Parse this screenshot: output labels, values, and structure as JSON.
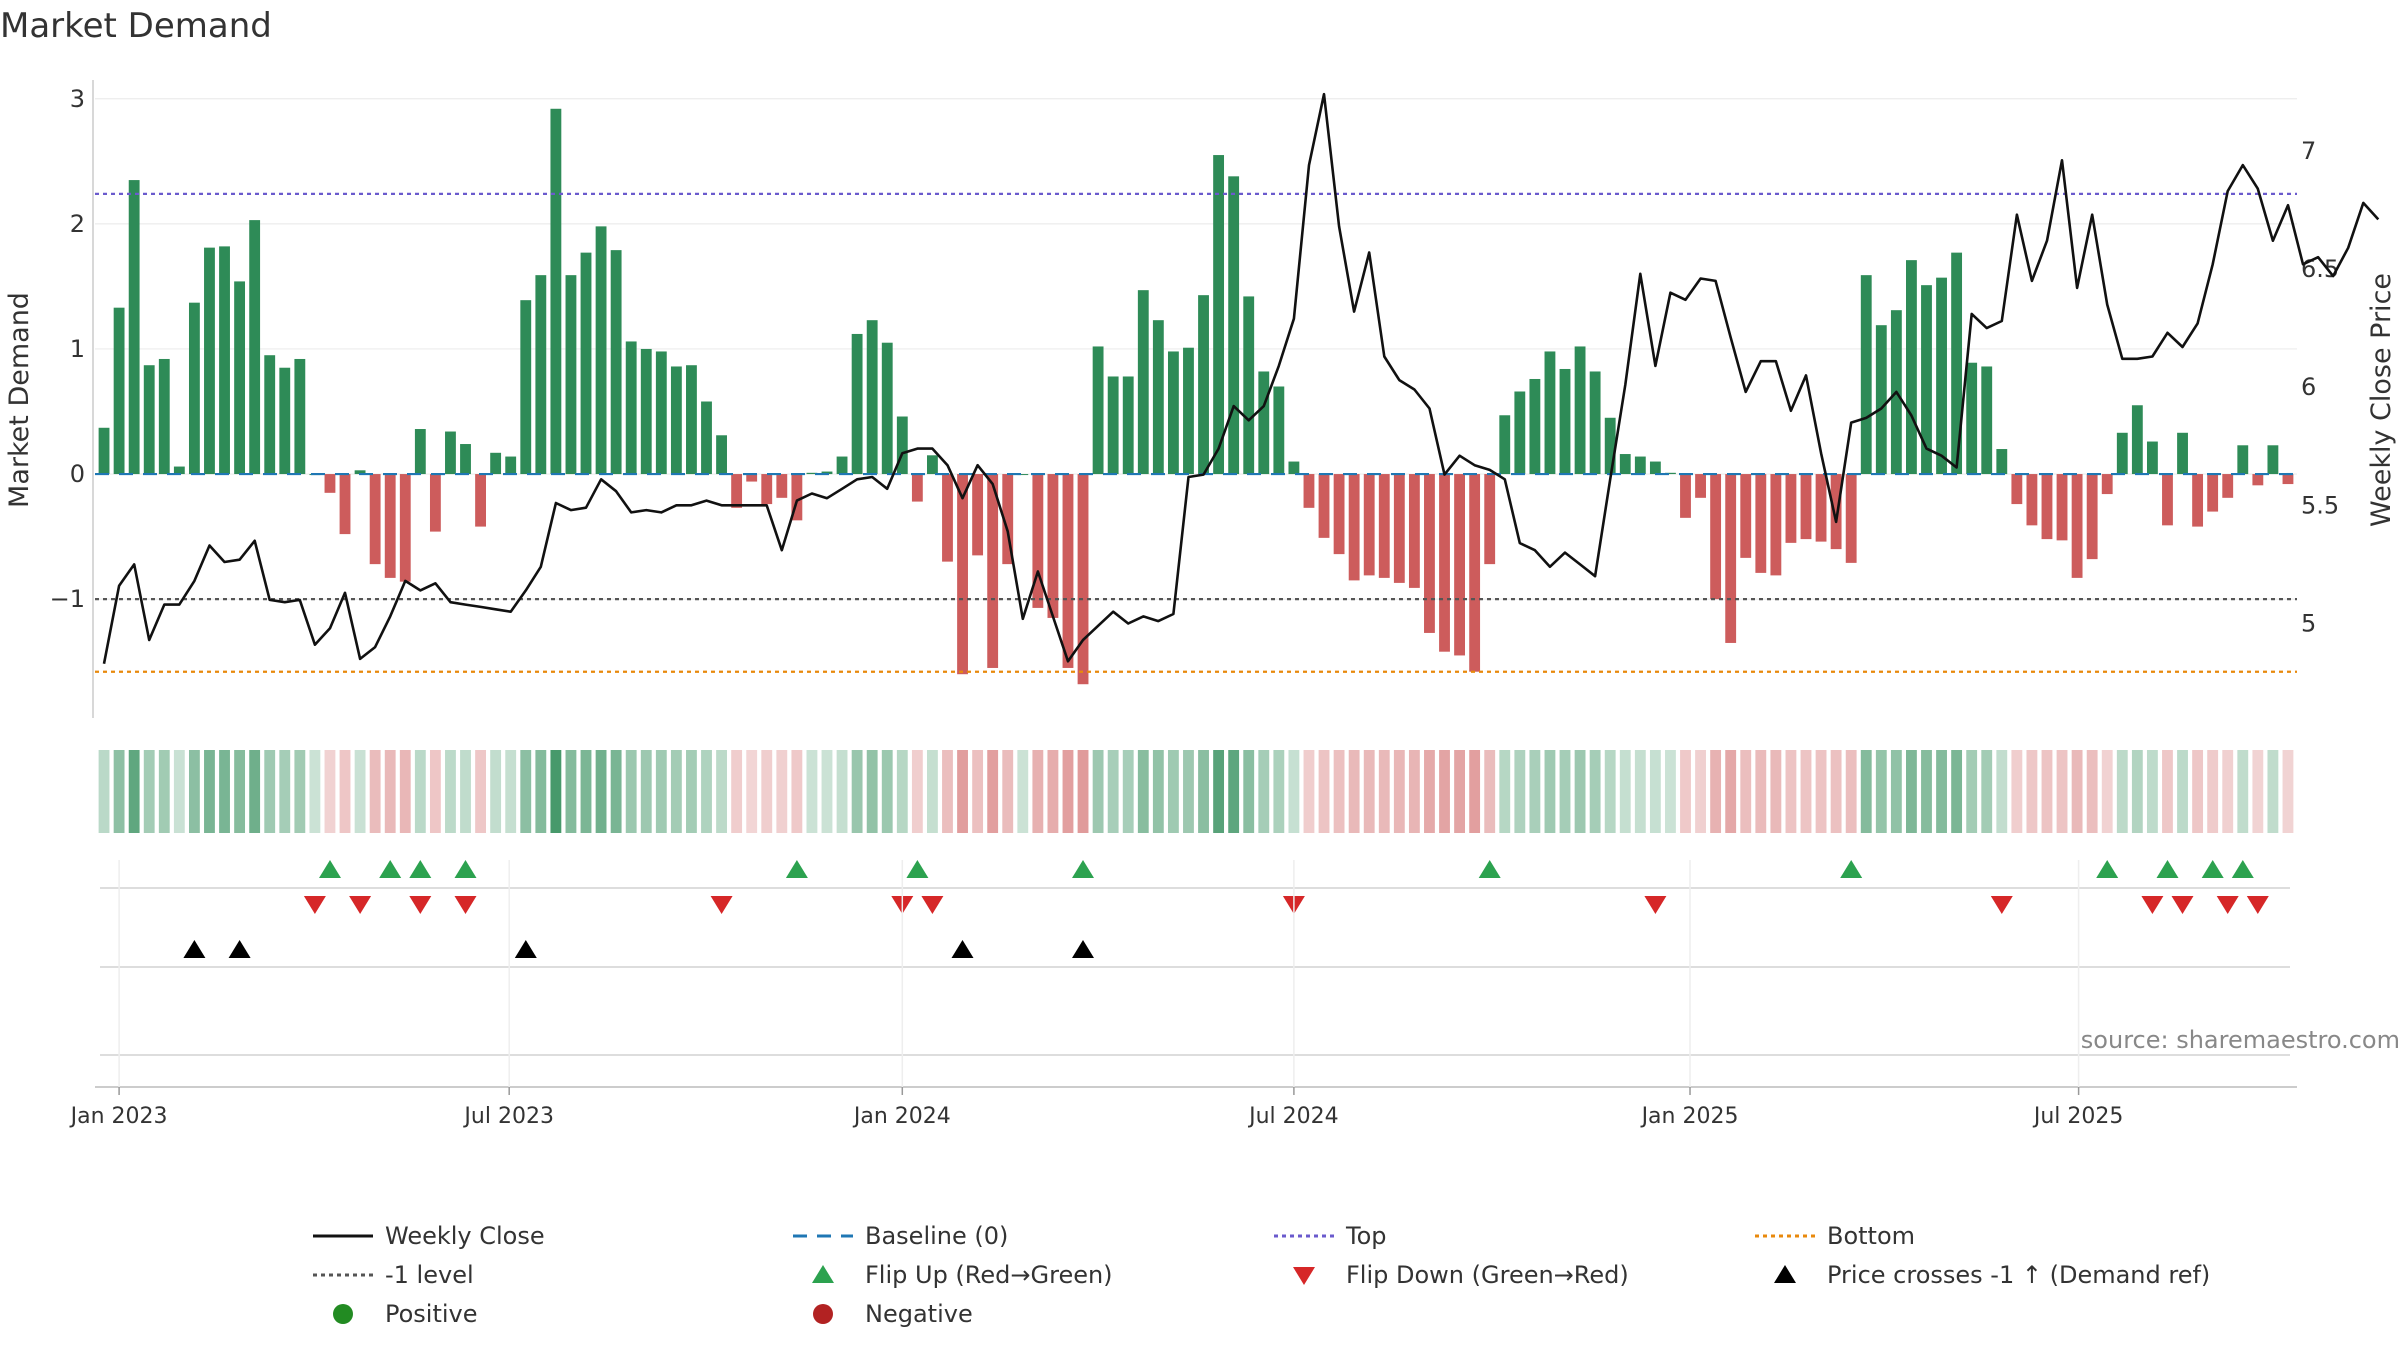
{
  "chart_data": {
    "type": "bar",
    "title": "Market Demand",
    "ylabel_left": "Market Demand",
    "ylabel_right": "Weekly Close Price",
    "ylim_left": [
      -1.95,
      3.15
    ],
    "ylim_right": [
      4.6,
      7.3
    ],
    "yticks_left": [
      {
        "v": 3,
        "label": "3"
      },
      {
        "v": 2,
        "label": "2"
      },
      {
        "v": 1,
        "label": "1"
      },
      {
        "v": 0,
        "label": "0"
      },
      {
        "v": -1,
        "label": "−1"
      }
    ],
    "yticks_right": [
      {
        "v": 7,
        "label": "7"
      },
      {
        "v": 6.5,
        "label": "6.5"
      },
      {
        "v": 6,
        "label": "6"
      },
      {
        "v": 5.5,
        "label": "5.5"
      },
      {
        "v": 5,
        "label": "5"
      }
    ],
    "x_start": "2022-12-26",
    "x_week_range": [
      -0.6,
      145.6
    ],
    "xticks": [
      {
        "week": 1.0,
        "label": "Jan 2023"
      },
      {
        "week": 26.9,
        "label": "Jul 2023"
      },
      {
        "week": 53.0,
        "label": "Jan 2024"
      },
      {
        "week": 79.0,
        "label": "Jul 2024"
      },
      {
        "week": 105.3,
        "label": "Jan 2025"
      },
      {
        "week": 131.1,
        "label": "Jul 2025"
      }
    ],
    "reference_lines": {
      "top": 2.24,
      "minus_one": -1.0,
      "bottom": -1.58,
      "baseline": 0
    },
    "demand": [
      0.37,
      1.33,
      2.35,
      0.87,
      0.92,
      0.06,
      1.37,
      1.81,
      1.82,
      1.54,
      2.03,
      0.95,
      0.85,
      0.92,
      0.0,
      -0.15,
      -0.48,
      0.03,
      -0.72,
      -0.83,
      -0.86,
      0.36,
      -0.46,
      0.34,
      0.24,
      -0.42,
      0.17,
      0.14,
      1.39,
      1.59,
      2.92,
      1.59,
      1.77,
      1.98,
      1.79,
      1.06,
      1.0,
      0.98,
      0.86,
      0.87,
      0.58,
      0.31,
      -0.27,
      -0.06,
      -0.24,
      -0.19,
      -0.37,
      0.01,
      0.02,
      0.14,
      1.12,
      1.23,
      1.05,
      0.46,
      -0.22,
      0.15,
      -0.7,
      -1.6,
      -0.65,
      -1.55,
      -0.72,
      0.0,
      -1.07,
      -1.15,
      -1.55,
      -1.68,
      1.02,
      0.78,
      0.78,
      1.47,
      1.23,
      0.98,
      1.01,
      1.43,
      2.55,
      2.38,
      1.42,
      0.82,
      0.7,
      0.1,
      -0.27,
      -0.51,
      -0.64,
      -0.85,
      -0.81,
      -0.83,
      -0.87,
      -0.91,
      -1.27,
      -1.42,
      -1.45,
      -1.58,
      -0.72,
      0.47,
      0.66,
      0.76,
      0.98,
      0.84,
      1.02,
      0.82,
      0.45,
      0.16,
      0.14,
      0.1,
      0.01,
      -0.35,
      -0.19,
      -1.0,
      -1.35,
      -0.67,
      -0.79,
      -0.81,
      -0.55,
      -0.52,
      -0.54,
      -0.6,
      -0.71,
      1.59,
      1.19,
      1.31,
      1.71,
      1.51,
      1.57,
      1.77,
      0.89,
      0.86,
      0.2,
      -0.24,
      -0.41,
      -0.52,
      -0.53,
      -0.83,
      -0.68,
      -0.16,
      0.33,
      0.55,
      0.26,
      -0.41,
      0.33,
      -0.42,
      -0.3,
      -0.19,
      0.23,
      -0.09,
      0.23,
      -0.08
    ],
    "close": [
      4.83,
      5.16,
      5.25,
      4.93,
      5.08,
      5.08,
      5.18,
      5.33,
      5.26,
      5.27,
      5.35,
      5.1,
      5.09,
      5.1,
      4.91,
      4.98,
      5.13,
      4.85,
      4.9,
      5.03,
      5.18,
      5.14,
      5.17,
      5.09,
      5.08,
      5.07,
      5.06,
      5.05,
      5.14,
      5.24,
      5.51,
      5.48,
      5.49,
      5.61,
      5.56,
      5.47,
      5.48,
      5.47,
      5.5,
      5.5,
      5.52,
      5.5,
      5.5,
      5.5,
      5.5,
      5.31,
      5.52,
      5.55,
      5.53,
      5.57,
      5.61,
      5.62,
      5.57,
      5.72,
      5.74,
      5.74,
      5.67,
      5.53,
      5.67,
      5.59,
      5.39,
      5.02,
      5.22,
      5.03,
      4.84,
      4.93,
      4.99,
      5.05,
      5.0,
      5.03,
      5.01,
      5.04,
      5.62,
      5.63,
      5.74,
      5.92,
      5.86,
      5.92,
      6.09,
      6.29,
      6.94,
      7.24,
      6.68,
      6.32,
      6.57,
      6.13,
      6.03,
      5.99,
      5.91,
      5.63,
      5.71,
      5.67,
      5.65,
      5.61,
      5.34,
      5.31,
      5.24,
      5.3,
      5.25,
      5.2,
      5.61,
      6.01,
      6.48,
      6.09,
      6.4,
      6.37,
      6.46,
      6.45,
      6.21,
      5.98,
      6.11,
      6.11,
      5.9,
      6.05,
      5.72,
      5.43,
      5.85,
      5.87,
      5.91,
      5.98,
      5.88,
      5.74,
      5.71,
      5.66,
      6.31,
      6.25,
      6.28,
      6.73,
      6.45,
      6.62,
      6.96,
      6.42,
      6.73,
      6.35,
      6.12,
      6.12,
      6.13,
      6.23,
      6.17,
      6.27,
      6.52,
      6.83,
      6.94,
      6.84,
      6.62,
      6.77,
      6.52,
      6.55,
      6.47,
      6.59,
      6.78,
      6.71
    ],
    "flip_up_weeks": [
      15,
      19,
      21,
      24,
      46,
      54,
      65,
      92,
      116,
      133,
      137,
      140,
      142
    ],
    "flip_down_weeks": [
      14,
      17,
      21,
      24,
      41,
      53,
      55,
      79,
      103,
      126,
      136,
      138,
      141,
      143
    ],
    "price_cross_weeks": [
      6,
      9,
      28,
      57,
      65
    ],
    "annotation": "source: sharemaestro.com",
    "legend": [
      {
        "label": "Weekly Close",
        "style": "line",
        "color": "#111111"
      },
      {
        "label": "Baseline (0)",
        "style": "dash",
        "color": "#1f77b4"
      },
      {
        "label": "Top",
        "style": "dot",
        "color": "#6a5acd"
      },
      {
        "label": "Bottom",
        "style": "dot",
        "color": "#e8890c"
      },
      {
        "label": "-1 level",
        "style": "dot",
        "color": "#555555"
      },
      {
        "label": "Flip Up (Red→Green)",
        "style": "tri-up",
        "color": "#2ca24f"
      },
      {
        "label": "Flip Down (Green→Red)",
        "style": "tri-down",
        "color": "#d62728"
      },
      {
        "label": "Price crosses -1 ↑ (Demand ref)",
        "style": "tri-up",
        "color": "#000000"
      },
      {
        "label": "Positive",
        "style": "circle",
        "color": "#228b22"
      },
      {
        "label": "Negative",
        "style": "circle",
        "color": "#b22222"
      }
    ],
    "colors": {
      "positive": "#2e8b57",
      "negative": "#cd5c5c",
      "line": "#111111",
      "baseline": "#1f77b4",
      "top": "#6a5acd",
      "bottom": "#e8890c",
      "minus_one": "#555555",
      "flip_up": "#2ca24f",
      "flip_down": "#d62728",
      "cross": "#000000"
    }
  }
}
